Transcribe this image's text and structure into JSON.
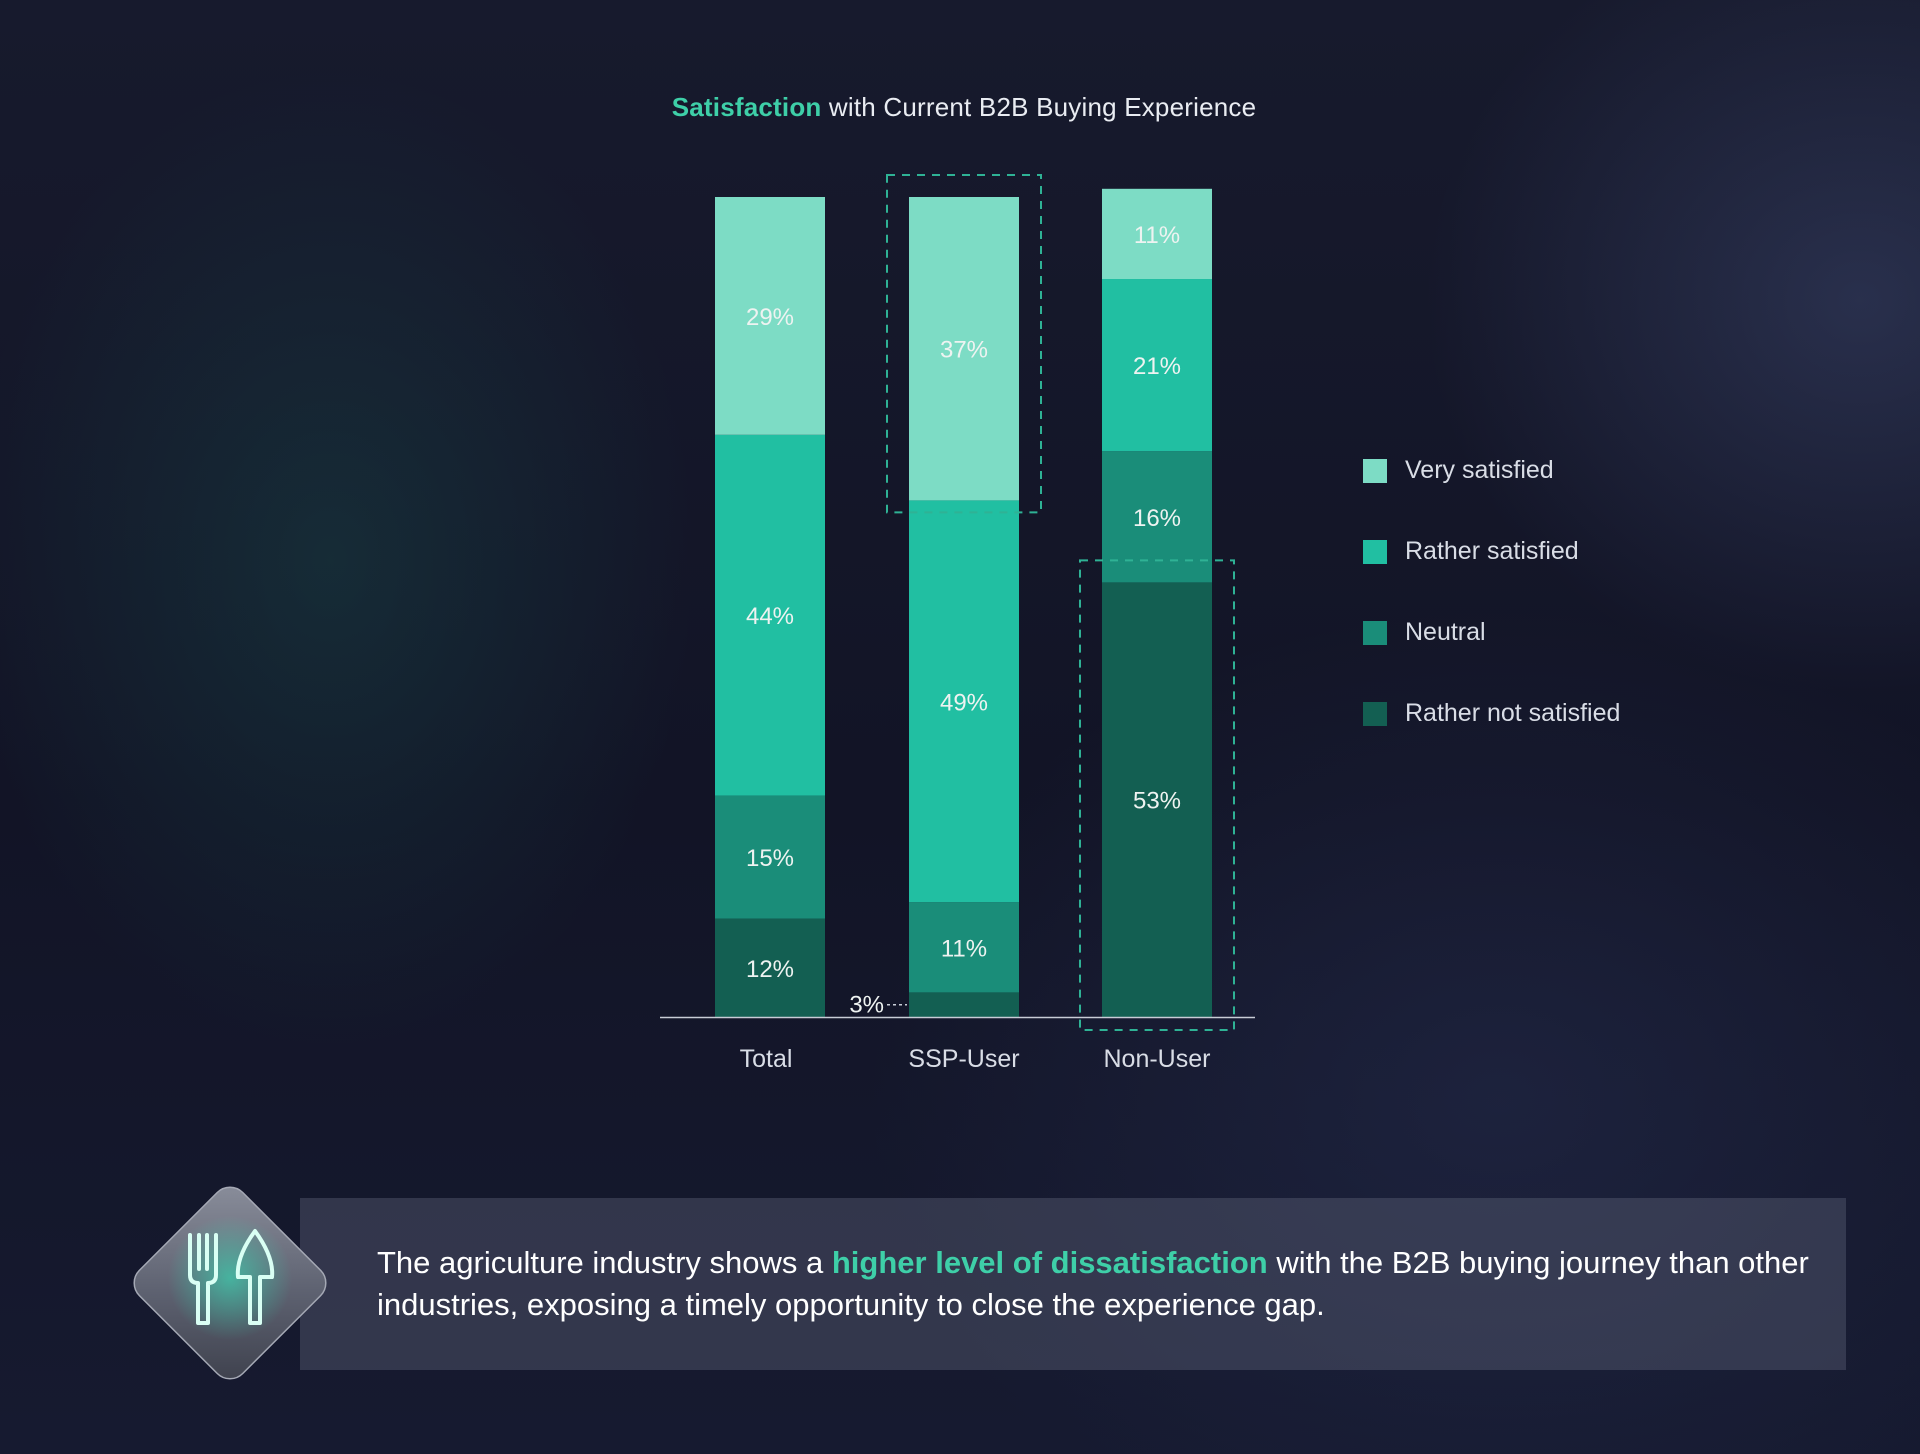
{
  "title": {
    "accent": "Satisfaction",
    "rest": " with Current B2B Buying Experience"
  },
  "colors": {
    "very_satisfied": "#7ddcc5",
    "rather_satisfied": "#21bfa2",
    "neutral": "#1a8d79",
    "rather_not_satisfied": "#135f52",
    "accent": "#3ecfa8",
    "highlight_dash": "#2fb295"
  },
  "chart_data": {
    "type": "bar",
    "stacked": true,
    "categories": [
      "Total",
      "SSP-User",
      "Non-User"
    ],
    "series": [
      {
        "name": "Rather not satisfied",
        "values": [
          12,
          3,
          53
        ],
        "labels": [
          "12%",
          "3%",
          "53%"
        ]
      },
      {
        "name": "Neutral",
        "values": [
          15,
          11,
          16
        ],
        "labels": [
          "15%",
          "11%",
          "16%"
        ]
      },
      {
        "name": "Rather satisfied",
        "values": [
          44,
          49,
          21
        ],
        "labels": [
          "44%",
          "49%",
          "21%"
        ]
      },
      {
        "name": "Very satisfied",
        "values": [
          29,
          37,
          11
        ],
        "labels": [
          "29%",
          "37%",
          "11%"
        ]
      }
    ],
    "ylim": [
      0,
      100
    ],
    "highlights": [
      {
        "category": "SSP-User",
        "series": "Very satisfied"
      },
      {
        "category": "Non-User",
        "series": "Rather not satisfied"
      }
    ],
    "legend": {
      "placement": "right",
      "items": [
        "Very satisfied",
        "Rather satisfied",
        "Neutral",
        "Rather not satisfied"
      ]
    }
  },
  "callout": {
    "icon": "fork-and-leaf-icon",
    "text_before": "The agriculture industry shows a ",
    "text_accent": "higher level of dissatisfaction",
    "text_after": " with the B2B buying journey than other industries, exposing a timely opportunity to close the experience gap."
  }
}
